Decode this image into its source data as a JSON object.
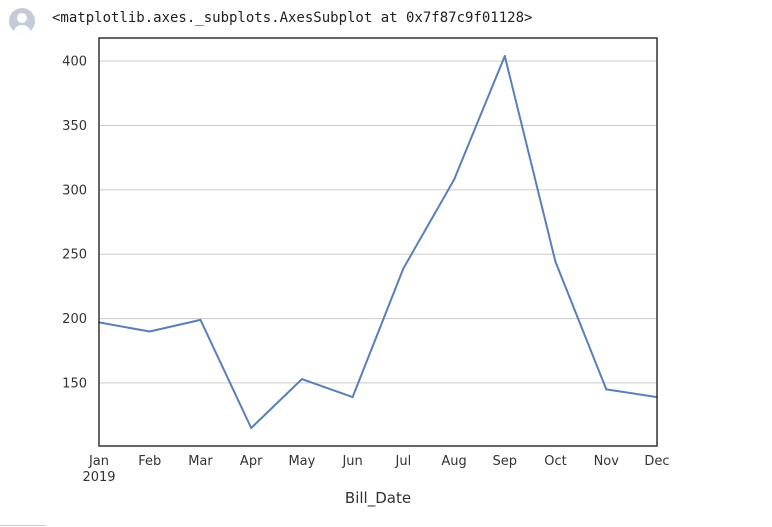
{
  "output": {
    "repr_text": "<matplotlib.axes._subplots.AxesSubplot at 0x7f87c9f01128>",
    "avatar_icon": "user-avatar-icon"
  },
  "colors": {
    "line": "#5a7fb8",
    "grid": "#cccccc",
    "axes": "#333333"
  },
  "chart_data": {
    "type": "line",
    "title": "",
    "xlabel": "Bill_Date",
    "ylabel": "",
    "x": [
      "Jan",
      "Feb",
      "Mar",
      "Apr",
      "May",
      "Jun",
      "Jul",
      "Aug",
      "Sep",
      "Oct",
      "Nov",
      "Dec"
    ],
    "x_sublabel": "2019",
    "series": [
      {
        "values": [
          197,
          190,
          199,
          115,
          153,
          139,
          239,
          308,
          404,
          244,
          145,
          139
        ]
      }
    ],
    "yticks": [
      "150",
      "200",
      "250",
      "300",
      "350",
      "400"
    ],
    "ylim": [
      101,
      418
    ],
    "grid": "horizontal",
    "legend": "none"
  }
}
